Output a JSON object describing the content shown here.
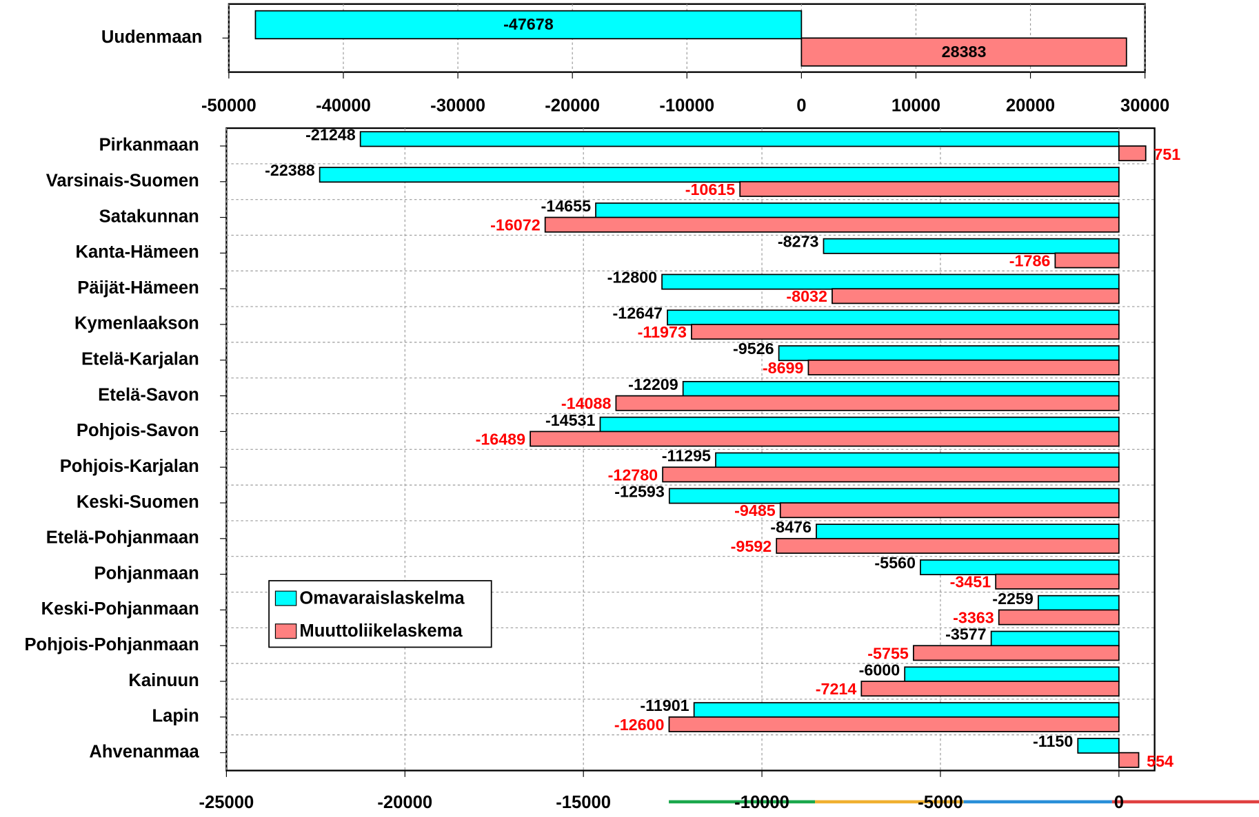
{
  "chart_data": [
    {
      "type": "bar",
      "orientation": "horizontal",
      "categories": [
        "Uudenmaan"
      ],
      "series": [
        {
          "color": "#00ffff",
          "values": [
            -47678
          ]
        },
        {
          "color": "#ff8080",
          "values": [
            28383
          ]
        }
      ],
      "xlim": [
        -50000,
        30000
      ],
      "xticks": [
        -50000,
        -40000,
        -30000,
        -20000,
        -10000,
        0,
        10000,
        20000,
        30000
      ],
      "grid": true
    },
    {
      "type": "bar",
      "orientation": "horizontal",
      "categories": [
        "Pirkanmaan",
        "Varsinais-Suomen",
        "Satakunnan",
        "Kanta-Hämeen",
        "Päijät-Hämeen",
        "Kymenlaakson",
        "Etelä-Karjalan",
        "Etelä-Savon",
        "Pohjois-Savon",
        "Pohjois-Karjalan",
        "Keski-Suomen",
        "Etelä-Pohjanmaan",
        "Pohjanmaan",
        "Keski-Pohjanmaan",
        "Pohjois-Pohjanmaan",
        "Kainuun",
        "Lapin",
        "Ahvenanmaa"
      ],
      "series": [
        {
          "name": "Omavaraislaskelma",
          "color": "#00ffff",
          "values": [
            -21248,
            -22388,
            -14655,
            -8273,
            -12800,
            -12647,
            -9526,
            -12209,
            -14531,
            -11295,
            -12593,
            -8476,
            -5560,
            -2259,
            -3577,
            -6000,
            -11901,
            -1150
          ]
        },
        {
          "name": "Muuttoliikelaskema",
          "color": "#ff8080",
          "values": [
            751,
            -10615,
            -16072,
            -1786,
            -8032,
            -11973,
            -8699,
            -14088,
            -16489,
            -12780,
            -9485,
            -9592,
            -3451,
            -3363,
            -5755,
            -7214,
            -12600,
            554
          ]
        }
      ],
      "xlim": [
        -25000,
        1000
      ],
      "xticks": [
        -25000,
        -20000,
        -15000,
        -10000,
        -5000,
        0
      ],
      "grid": true,
      "legend": "lower-left"
    }
  ]
}
